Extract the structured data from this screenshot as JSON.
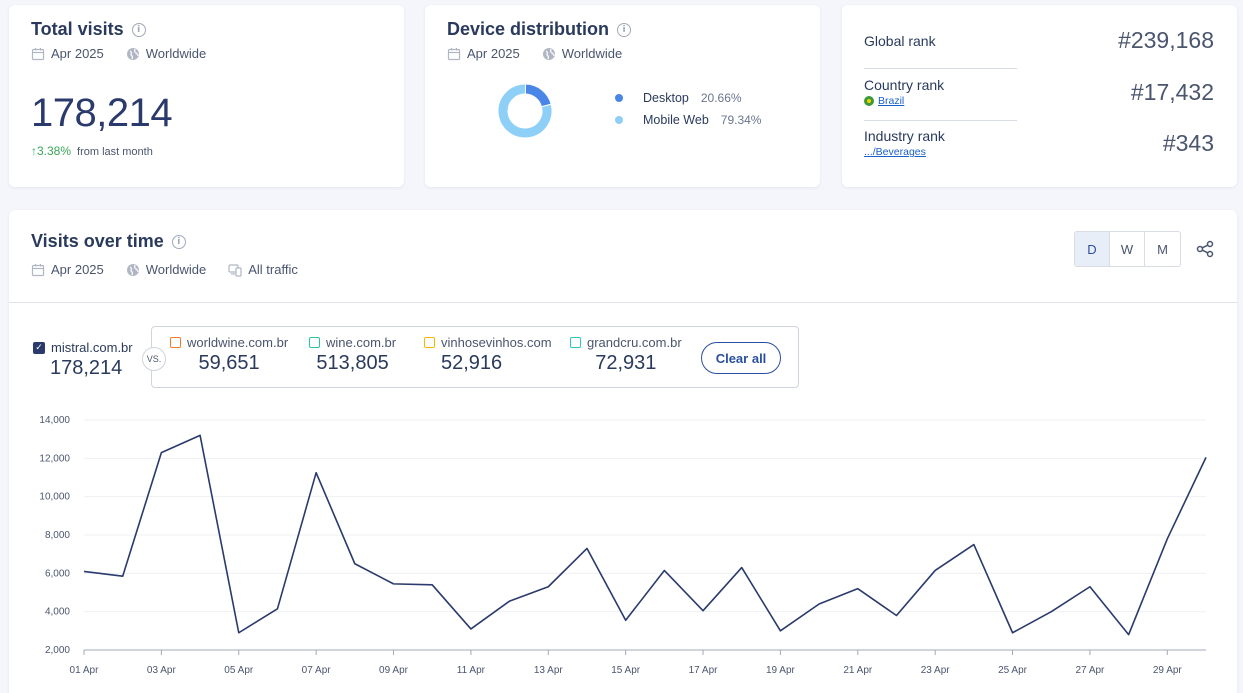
{
  "total_visits": {
    "title": "Total visits",
    "period": "Apr 2025",
    "region": "Worldwide",
    "value": "178,214",
    "change": "3.38%",
    "change_label": "from last month"
  },
  "device_distribution": {
    "title": "Device distribution",
    "period": "Apr 2025",
    "region": "Worldwide",
    "items": [
      {
        "name": "Desktop",
        "pct": "20.66%",
        "value": 20.66,
        "color": "#4a86e8"
      },
      {
        "name": "Mobile Web",
        "pct": "79.34%",
        "value": 79.34,
        "color": "#8ecff8"
      }
    ]
  },
  "ranks": {
    "global": {
      "label": "Global rank",
      "value": "#239,168"
    },
    "country": {
      "label": "Country rank",
      "sub": "Brazil",
      "value": "#17,432"
    },
    "industry": {
      "label": "Industry rank",
      "sub": ".../Beverages",
      "value": "#343"
    }
  },
  "visits_over_time": {
    "title": "Visits over time",
    "period": "Apr 2025",
    "region": "Worldwide",
    "traffic": "All traffic",
    "granularity": [
      "D",
      "W",
      "M"
    ],
    "active_granularity": "D",
    "main_site": {
      "name": "mistral.com.br",
      "value": "178,214"
    },
    "vs_label": "VS.",
    "competitors": [
      {
        "name": "worldwine.com.br",
        "value": "59,651",
        "color": "#f07c2a"
      },
      {
        "name": "wine.com.br",
        "value": "513,805",
        "color": "#2ec4a0"
      },
      {
        "name": "vinhosevinhos.com",
        "value": "52,916",
        "color": "#f5b800"
      },
      {
        "name": "grandcru.com.br",
        "value": "72,931",
        "color": "#2ec4c4"
      }
    ],
    "clear_label": "Clear all"
  },
  "chart_data": {
    "type": "line",
    "ylim": [
      2000,
      14000
    ],
    "yticks": [
      "2,000",
      "4,000",
      "6,000",
      "8,000",
      "10,000",
      "12,000",
      "14,000"
    ],
    "ytick_values": [
      2000,
      4000,
      6000,
      8000,
      10000,
      12000,
      14000
    ],
    "xticks": [
      "01 Apr",
      "03 Apr",
      "05 Apr",
      "07 Apr",
      "09 Apr",
      "11 Apr",
      "13 Apr",
      "15 Apr",
      "17 Apr",
      "19 Apr",
      "21 Apr",
      "23 Apr",
      "25 Apr",
      "27 Apr",
      "29 Apr"
    ],
    "series": [
      {
        "name": "mistral.com.br",
        "color": "#2a3a6c",
        "x": [
          "01 Apr",
          "02 Apr",
          "03 Apr",
          "04 Apr",
          "05 Apr",
          "06 Apr",
          "07 Apr",
          "08 Apr",
          "09 Apr",
          "10 Apr",
          "11 Apr",
          "12 Apr",
          "13 Apr",
          "14 Apr",
          "15 Apr",
          "16 Apr",
          "17 Apr",
          "18 Apr",
          "19 Apr",
          "20 Apr",
          "21 Apr",
          "22 Apr",
          "23 Apr",
          "24 Apr",
          "25 Apr",
          "26 Apr",
          "27 Apr",
          "28 Apr",
          "29 Apr",
          "30 Apr"
        ],
        "values": [
          6100,
          5850,
          12300,
          13200,
          2900,
          4150,
          11250,
          6500,
          5450,
          5400,
          3100,
          4550,
          5300,
          7300,
          3550,
          6150,
          4050,
          6300,
          3000,
          4400,
          5200,
          3800,
          6150,
          7500,
          2900,
          4000,
          5300,
          2800,
          7800,
          12050
        ]
      }
    ]
  }
}
